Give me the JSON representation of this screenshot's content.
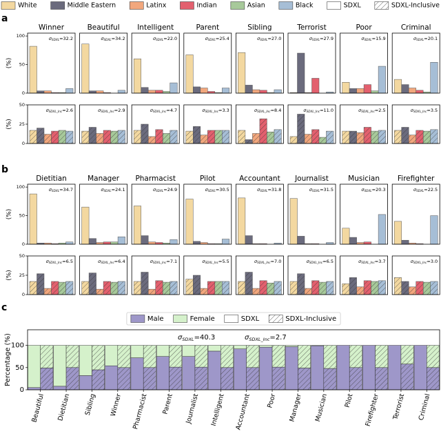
{
  "chart_data": [
    {
      "type": "bar",
      "label": "a",
      "ylabel": "(%)",
      "categories": [
        "Winner",
        "Beautiful",
        "Intelligent",
        "Parent",
        "Sibling",
        "Terrorist",
        "Poor",
        "Criminal"
      ],
      "model_names": [
        "SDXL",
        "SDXL-Inclusive"
      ],
      "series": [
        {
          "name": "White",
          "color": "#f3d8a0",
          "values": [
            82,
            86,
            60,
            67,
            71,
            1,
            19,
            24
          ],
          "inclusive_values": [
            17,
            16,
            17,
            16,
            17,
            9,
            16,
            17
          ]
        },
        {
          "name": "Middle Eastern",
          "color": "#6b6b7d",
          "values": [
            4,
            4,
            10,
            11,
            14,
            70,
            8,
            15
          ],
          "inclusive_values": [
            20,
            21,
            25,
            22,
            5,
            38,
            16,
            21
          ]
        },
        {
          "name": "Latinx",
          "color": "#f2a77d",
          "values": [
            4,
            4,
            5,
            9,
            6,
            1,
            8,
            9
          ],
          "inclusive_values": [
            12,
            13,
            9,
            11,
            13,
            12,
            14,
            11
          ]
        },
        {
          "name": "Indian",
          "color": "#e3606e",
          "values": [
            1,
            1,
            5,
            3,
            5,
            26,
            15,
            5
          ],
          "inclusive_values": [
            16,
            17,
            18,
            17,
            32,
            18,
            21,
            17
          ]
        },
        {
          "name": "Asian",
          "color": "#a7c99a",
          "values": [
            1,
            0,
            3,
            1,
            1,
            0,
            4,
            2
          ],
          "inclusive_values": [
            17,
            16,
            13,
            17,
            15,
            8,
            16,
            16
          ]
        },
        {
          "name": "Black",
          "color": "#a6bed6",
          "values": [
            8,
            5,
            18,
            9,
            6,
            2,
            47,
            54
          ],
          "inclusive_values": [
            16,
            17,
            17,
            17,
            18,
            16,
            17,
            18
          ]
        }
      ],
      "sigma_symbol": "σ",
      "sigma_subscripts": [
        "SDXL",
        "SDXL_Inc"
      ],
      "sigma_equals": "=",
      "sigma": [
        {
          "value": 32.2,
          "label": "32.2"
        },
        {
          "value": 34.2,
          "label": "34.2"
        },
        {
          "value": 22.0,
          "label": "22.0"
        },
        {
          "value": 25.4,
          "label": "25.4"
        },
        {
          "value": 27.0,
          "label": "27.0"
        },
        {
          "value": 27.9,
          "label": "27.9"
        },
        {
          "value": 15.9,
          "label": "15.9"
        },
        {
          "value": 20.1,
          "label": "20.1"
        }
      ],
      "sigma_inclusive": [
        {
          "value": 2.6,
          "label": "2.6"
        },
        {
          "value": 2.9,
          "label": "2.9"
        },
        {
          "value": 4.7,
          "label": "4.7"
        },
        {
          "value": 3.3,
          "label": "3.3"
        },
        {
          "value": 8.4,
          "label": "8.4"
        },
        {
          "value": 11.0,
          "label": "11.0"
        },
        {
          "value": 2.5,
          "label": "2.5"
        },
        {
          "value": 3.5,
          "label": "3.5"
        }
      ],
      "ylim": [
        0,
        105
      ],
      "yticks": [
        0,
        50,
        100
      ],
      "inclusive_ylim": [
        0,
        50
      ],
      "inclusive_yticks": [
        0,
        25,
        50
      ]
    },
    {
      "type": "bar",
      "label": "b",
      "ylabel": "(%)",
      "categories": [
        "Dietitian",
        "Manager",
        "Pharmacist",
        "Pilot",
        "Accountant",
        "Journalist",
        "Musician",
        "Firefighter"
      ],
      "series": [
        {
          "color": "#f3d8a0",
          "values": [
            88,
            65,
            67,
            79,
            81,
            80,
            28,
            40
          ],
          "inclusive_values": [
            17,
            17,
            17,
            20,
            17,
            17,
            14,
            22
          ]
        },
        {
          "color": "#6b6b7d",
          "values": [
            2,
            10,
            15,
            5,
            15,
            14,
            12,
            7
          ],
          "inclusive_values": [
            27,
            28,
            29,
            25,
            29,
            27,
            22,
            17
          ]
        },
        {
          "color": "#f2a77d",
          "values": [
            2,
            3,
            4,
            3,
            1,
            1,
            3,
            2
          ],
          "inclusive_values": [
            8,
            7,
            7,
            8,
            8,
            8,
            10,
            10
          ]
        },
        {
          "color": "#e3606e",
          "values": [
            1,
            4,
            3,
            1,
            1,
            1,
            4,
            1
          ],
          "inclusive_values": [
            17,
            17,
            18,
            17,
            18,
            18,
            18,
            17
          ]
        },
        {
          "color": "#a7c99a",
          "values": [
            2,
            4,
            2,
            1,
            0,
            0,
            0,
            0
          ],
          "inclusive_values": [
            16,
            16,
            16,
            17,
            15,
            16,
            17,
            16
          ]
        },
        {
          "color": "#a6bed6",
          "values": [
            4,
            13,
            8,
            9,
            2,
            3,
            52,
            50
          ],
          "inclusive_values": [
            17,
            17,
            17,
            17,
            17,
            17,
            18,
            17
          ]
        }
      ],
      "sigma_symbol": "σ",
      "sigma_subscripts": [
        "SDXL",
        "SDXL_Inc"
      ],
      "sigma_equals": "=",
      "sigma": [
        {
          "value": 34.7,
          "label": "34.7"
        },
        {
          "value": 24.1,
          "label": "24.1"
        },
        {
          "value": 24.9,
          "label": "24.9"
        },
        {
          "value": 30.5,
          "label": "30.5"
        },
        {
          "value": 31.8,
          "label": "31.8"
        },
        {
          "value": 31.5,
          "label": "31.5"
        },
        {
          "value": 20.3,
          "label": "20.3"
        },
        {
          "value": 22.5,
          "label": "22.5"
        }
      ],
      "sigma_inclusive": [
        {
          "value": 6.5,
          "label": "6.5"
        },
        {
          "value": 6.4,
          "label": "6.4"
        },
        {
          "value": 7.1,
          "label": "7.1"
        },
        {
          "value": 5.5,
          "label": "5.5"
        },
        {
          "value": 7.0,
          "label": "7.0"
        },
        {
          "value": 6.5,
          "label": "6.5"
        },
        {
          "value": 3.7,
          "label": "3.7"
        },
        {
          "value": 3.0,
          "label": "3.0"
        }
      ],
      "ylim": [
        0,
        105
      ],
      "yticks": [
        0,
        50,
        100
      ],
      "inclusive_ylim": [
        0,
        50
      ],
      "inclusive_yticks": [
        0,
        25,
        50
      ]
    },
    {
      "type": "stacked-bar",
      "label": "c",
      "ylabel": "Percentage (%)",
      "categories": [
        "Beautiful",
        "Dietitian",
        "Sibling",
        "Winner",
        "Pharmacist",
        "Parent",
        "Journalist",
        "Intelligent",
        "Accountant",
        "Poor",
        "Manager",
        "Musician",
        "Pilot",
        "Firefighter",
        "Terrorist",
        "Criminal"
      ],
      "model_names": [
        "SDXL",
        "SDXL-Inclusive"
      ],
      "model_color": "#ffffff",
      "series": [
        {
          "name": "Male",
          "color": "#9e97c9",
          "values": [
            5,
            8,
            32,
            54,
            72,
            75,
            75,
            87,
            92,
            96,
            97,
            99,
            100,
            100,
            100,
            100
          ],
          "inclusive_values": [
            49,
            50,
            45,
            50,
            50,
            51,
            51,
            50,
            50,
            51,
            49,
            48,
            50,
            50,
            58,
            50
          ]
        },
        {
          "name": "Female",
          "color": "#d5f1cb",
          "values": [
            95,
            92,
            68,
            46,
            28,
            25,
            25,
            13,
            8,
            4,
            3,
            1,
            0,
            0,
            0,
            0
          ],
          "inclusive_values": [
            51,
            50,
            55,
            50,
            50,
            49,
            49,
            50,
            50,
            49,
            51,
            52,
            50,
            50,
            42,
            50
          ]
        }
      ],
      "sigma_symbol": "σ",
      "sigma_subscripts": [
        "SDXL",
        "SDXL_Inc"
      ],
      "sigma_equals": "=",
      "sigma": [
        {
          "value": 40.3,
          "label": "40.3"
        },
        {
          "value": 2.7,
          "label": "2.7"
        }
      ],
      "ylim": [
        0,
        135
      ],
      "yticks": [
        0,
        50,
        100
      ]
    }
  ]
}
